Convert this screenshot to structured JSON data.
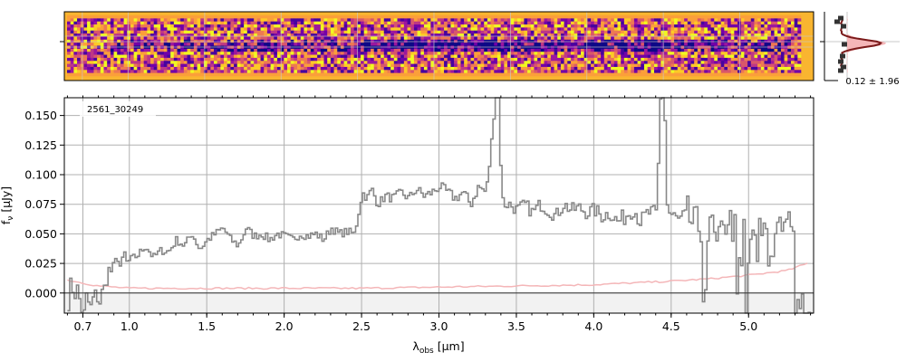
{
  "chart_data": [
    {
      "type": "heatmap",
      "panel": "2d-spectrum",
      "description_colormap": "plasma",
      "background_color": "#f9b530",
      "grid": true
    },
    {
      "type": "line",
      "panel": "cross-dispersion-profile",
      "annotation": "0.12 ± 1.96",
      "profile_fill_color": "#f4b6b8",
      "profile_line_color": "#7a1a1a",
      "points_color": "#222222"
    },
    {
      "type": "line",
      "panel": "1d-spectrum",
      "legend_label": "2561_30249",
      "legend_placement": "top-left",
      "xlabel_main": "λ",
      "xlabel_sub": "obs",
      "xlabel_unit": " [μm]",
      "ylabel_main": "f",
      "ylabel_sub": "ν",
      "ylabel_unit": " [μJy]",
      "xlim": [
        0.58,
        5.42
      ],
      "ylim": [
        -0.017,
        0.165
      ],
      "x_ticks": [
        {
          "value": 0.7,
          "label": "0.7"
        },
        {
          "value": 1.0,
          "label": "1.0"
        },
        {
          "value": 1.5,
          "label": "1.5"
        },
        {
          "value": 2.0,
          "label": "2.0"
        },
        {
          "value": 2.5,
          "label": "2.5"
        },
        {
          "value": 3.0,
          "label": "3.0"
        },
        {
          "value": 3.5,
          "label": "3.5"
        },
        {
          "value": 4.0,
          "label": "4.0"
        },
        {
          "value": 4.5,
          "label": "4.5"
        },
        {
          "value": 5.0,
          "label": "5.0"
        }
      ],
      "y_ticks": [
        {
          "value": 0.0,
          "label": "0.000"
        },
        {
          "value": 0.025,
          "label": "0.025"
        },
        {
          "value": 0.05,
          "label": "0.050"
        },
        {
          "value": 0.075,
          "label": "0.075"
        },
        {
          "value": 0.1,
          "label": "0.100"
        },
        {
          "value": 0.125,
          "label": "0.125"
        },
        {
          "value": 0.15,
          "label": "0.150"
        }
      ],
      "series": [
        {
          "name": "flux",
          "color": "#888888",
          "x": [
            0.6,
            0.62,
            0.64,
            0.66,
            0.68,
            0.7,
            0.72,
            0.74,
            0.76,
            0.78,
            0.8,
            0.82,
            0.84,
            0.86,
            0.88,
            0.9,
            0.92,
            0.94,
            0.96,
            0.98,
            1.0,
            1.05,
            1.1,
            1.15,
            1.2,
            1.25,
            1.3,
            1.35,
            1.4,
            1.45,
            1.5,
            1.55,
            1.6,
            1.65,
            1.7,
            1.75,
            1.8,
            1.85,
            1.9,
            1.95,
            2.0,
            2.05,
            2.1,
            2.15,
            2.2,
            2.25,
            2.3,
            2.35,
            2.4,
            2.45,
            2.5,
            2.53,
            2.56,
            2.6,
            2.65,
            2.7,
            2.75,
            2.8,
            2.85,
            2.9,
            2.95,
            3.0,
            3.05,
            3.1,
            3.15,
            3.2,
            3.25,
            3.3,
            3.33,
            3.36,
            3.38,
            3.4,
            3.42,
            3.45,
            3.5,
            3.55,
            3.6,
            3.65,
            3.7,
            3.75,
            3.8,
            3.85,
            3.9,
            3.95,
            4.0,
            4.05,
            4.1,
            4.15,
            4.2,
            4.25,
            4.3,
            4.35,
            4.4,
            4.43,
            4.45,
            4.47,
            4.5,
            4.55,
            4.6,
            4.65,
            4.7,
            4.75,
            4.8,
            4.85,
            4.9,
            4.95,
            5.0,
            5.05,
            5.1,
            5.15,
            5.2,
            5.25,
            5.3,
            5.35,
            5.4
          ],
          "values": [
            -0.005,
            0.008,
            0.0,
            0.003,
            -0.01,
            -0.02,
            0.0,
            -0.015,
            -0.005,
            0.0,
            -0.01,
            0.002,
            0.006,
            0.02,
            0.018,
            0.025,
            0.03,
            0.02,
            0.035,
            0.025,
            0.028,
            0.032,
            0.04,
            0.03,
            0.036,
            0.035,
            0.045,
            0.04,
            0.05,
            0.037,
            0.045,
            0.05,
            0.055,
            0.045,
            0.04,
            0.055,
            0.048,
            0.05,
            0.045,
            0.05,
            0.048,
            0.045,
            0.05,
            0.048,
            0.05,
            0.045,
            0.055,
            0.05,
            0.052,
            0.05,
            0.085,
            0.08,
            0.088,
            0.075,
            0.082,
            0.08,
            0.085,
            0.08,
            0.088,
            0.082,
            0.085,
            0.09,
            0.085,
            0.08,
            0.085,
            0.075,
            0.09,
            0.085,
            0.12,
            0.17,
            0.165,
            0.08,
            0.075,
            0.075,
            0.07,
            0.075,
            0.068,
            0.075,
            0.07,
            0.065,
            0.075,
            0.07,
            0.072,
            0.068,
            0.07,
            0.065,
            0.068,
            0.06,
            0.065,
            0.072,
            0.06,
            0.068,
            0.065,
            0.18,
            0.17,
            0.07,
            0.065,
            0.06,
            0.065,
            0.055,
            0.06,
            0.052,
            0.04,
            0.055,
            0.05,
            0.045,
            0.04,
            0.035,
            0.05,
            0.045,
            0.04,
            0.045,
            0.02,
            0.005,
            0.0
          ]
        },
        {
          "name": "uncertainty",
          "color": "#f4b6b8",
          "x": [
            0.6,
            0.8,
            1.0,
            1.5,
            2.0,
            2.5,
            3.0,
            3.5,
            4.0,
            4.5,
            4.75,
            5.0,
            5.25,
            5.38
          ],
          "values": [
            0.011,
            0.006,
            0.004,
            0.004,
            0.004,
            0.004,
            0.005,
            0.006,
            0.007,
            0.01,
            0.012,
            0.015,
            0.019,
            0.025
          ]
        }
      ]
    }
  ]
}
